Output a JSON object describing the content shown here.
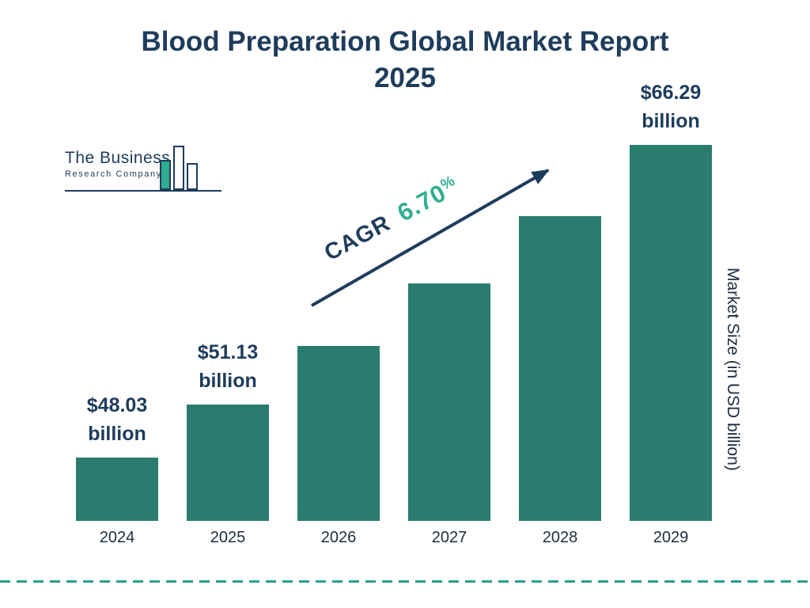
{
  "title": {
    "full": "Blood Preparation Global Market Report 2025",
    "line1": "Blood Preparation Global Market Report",
    "line2": "2025"
  },
  "logo": {
    "line1": "The Business",
    "line2": "Research Company"
  },
  "colors": {
    "navy": "#1e3c5b",
    "bar_teal": "#2a7d6e",
    "accent_teal": "#2fae92",
    "dash_teal": "#2a9d8f",
    "axis_text": "#1d2d3e"
  },
  "chart_data": {
    "type": "bar",
    "categories": [
      "2024",
      "2025",
      "2026",
      "2027",
      "2028",
      "2029"
    ],
    "values": [
      48.03,
      51.13,
      54.56,
      58.21,
      62.11,
      66.29
    ],
    "value_labels": [
      "$48.03 billion",
      "$51.13 billion",
      null,
      null,
      null,
      "$66.29 billion"
    ],
    "title": "Blood Preparation Global Market Report 2025",
    "xlabel": "",
    "ylabel": "Market Size (in USD billion)",
    "ylim": [
      44.3,
      68
    ],
    "grid": false,
    "legend": false,
    "bar_color": "#2a7d6e",
    "annotations": {
      "cagr_label": "CAGR",
      "cagr_value": "6.70",
      "cagr_unit": "%"
    }
  }
}
